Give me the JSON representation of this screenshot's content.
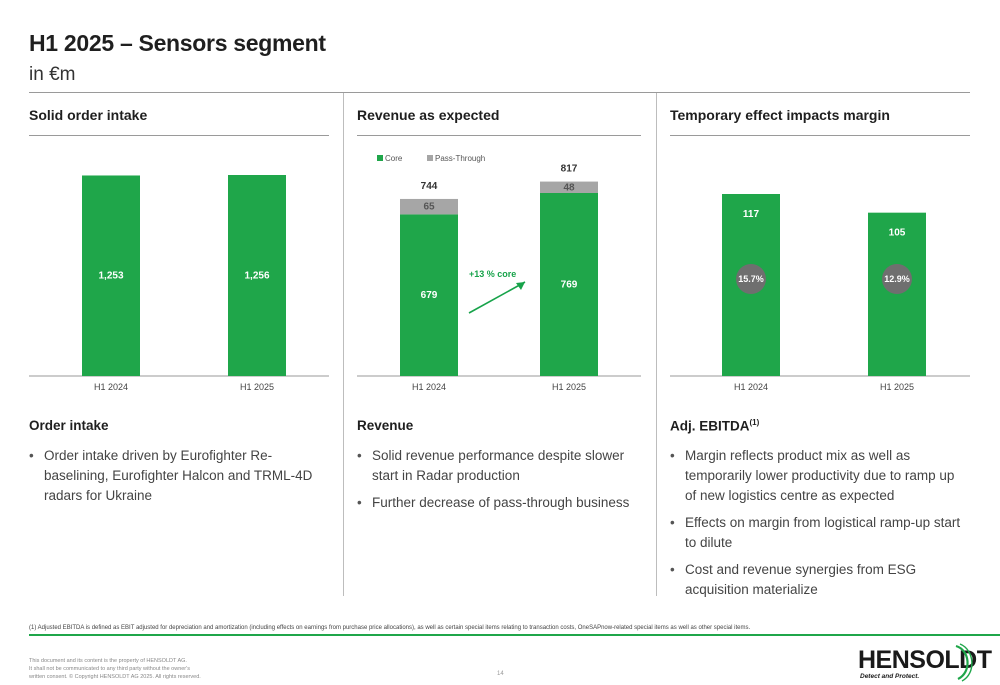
{
  "header": {
    "title": "H1 2025 – Sensors segment",
    "subtitle": "in €m"
  },
  "columns": [
    {
      "heading": "Solid order intake",
      "section_title": "Order intake",
      "section_title_sup": "",
      "bullets": [
        "Order intake driven by Eurofighter Re-baselining, Eurofighter Halcon  and TRML-4D radars for Ukraine"
      ]
    },
    {
      "heading": "Revenue as expected",
      "section_title": "Revenue",
      "section_title_sup": "",
      "bullets": [
        "Solid revenue performance despite slower start in Radar production",
        "Further decrease of pass-through business"
      ]
    },
    {
      "heading": "Temporary effect impacts margin",
      "section_title": "Adj. EBITDA",
      "section_title_sup": "(1)",
      "bullets": [
        "Margin reflects product mix as well as temporarily lower productivity due to ramp up of new logistics centre as expected",
        "Effects on margin from logistical ramp-up start to dilute",
        "Cost and revenue synergies from ESG acquisition materialize"
      ]
    }
  ],
  "chart_data": [
    {
      "type": "bar",
      "categories": [
        "H1 2024",
        "H1 2025"
      ],
      "values": [
        1253,
        1256
      ],
      "value_labels": [
        "1,253",
        "1,256"
      ],
      "color": "#1fa64a"
    },
    {
      "type": "bar",
      "stacked": true,
      "categories": [
        "H1 2024",
        "H1 2025"
      ],
      "series": [
        {
          "name": "Core",
          "values": [
            679,
            769
          ],
          "labels": [
            "679",
            "769"
          ],
          "color": "#1fa64a"
        },
        {
          "name": "Pass-Through",
          "values": [
            65,
            48
          ],
          "labels": [
            "65",
            "48"
          ],
          "color": "#a6a6a6"
        }
      ],
      "totals": [
        "744",
        "817"
      ],
      "annotation": "+13 % core",
      "legend": "top-left"
    },
    {
      "type": "bar",
      "categories": [
        "H1 2024",
        "H1 2025"
      ],
      "values": [
        117,
        105
      ],
      "value_labels": [
        "117",
        "105"
      ],
      "margins": [
        "15.7%",
        "12.9%"
      ],
      "color": "#1fa64a",
      "margin_color": "#6f6f6f"
    }
  ],
  "footer": {
    "footnote": "(1) Adjusted EBITDA is defined as EBIT adjusted for depreciation and amortization (including effects on earnings from purchase price allocations), as well as certain special items relating to transaction costs, OneSAPnow-related special items as well as other special items.",
    "legal_1": "This document and its content is the property of HENSOLDT AG.",
    "legal_2": "It shall not be communicated to any third party without the owner's",
    "legal_3": "written consent. © Copyright HENSOLDT AG 2025. All rights reserved.",
    "page_number": "14",
    "logo_text": "HENSOLDT",
    "logo_tagline": "Detect and Protect."
  }
}
